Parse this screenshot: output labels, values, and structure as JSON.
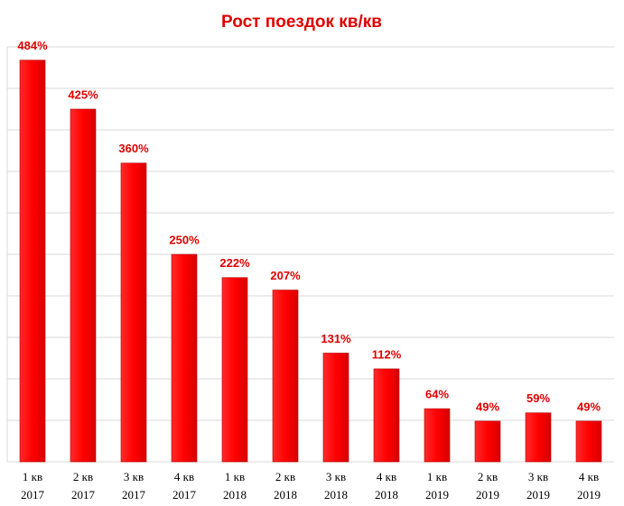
{
  "chart_data": {
    "type": "bar",
    "title": "Рост поездок кв/кв",
    "categories": [
      [
        "1 кв",
        "2017"
      ],
      [
        "2 кв",
        "2017"
      ],
      [
        "3 кв",
        "2017"
      ],
      [
        "4 кв",
        "2017"
      ],
      [
        "1 кв",
        "2018"
      ],
      [
        "2 кв",
        "2018"
      ],
      [
        "3 кв",
        "2018"
      ],
      [
        "4 кв",
        "2018"
      ],
      [
        "1 кв",
        "2019"
      ],
      [
        "2 кв",
        "2019"
      ],
      [
        "3 кв",
        "2019"
      ],
      [
        "4 кв",
        "2019"
      ]
    ],
    "values": [
      484,
      425,
      360,
      250,
      222,
      207,
      131,
      112,
      64,
      49,
      59,
      49
    ],
    "value_labels": [
      "484%",
      "425%",
      "360%",
      "250%",
      "222%",
      "207%",
      "131%",
      "112%",
      "64%",
      "49%",
      "59%",
      "49%"
    ],
    "color": "#ff0000",
    "ylim": [
      0,
      500
    ],
    "yticks": [
      0,
      50,
      100,
      150,
      200,
      250,
      300,
      350,
      400,
      450,
      500
    ],
    "grid": true
  }
}
